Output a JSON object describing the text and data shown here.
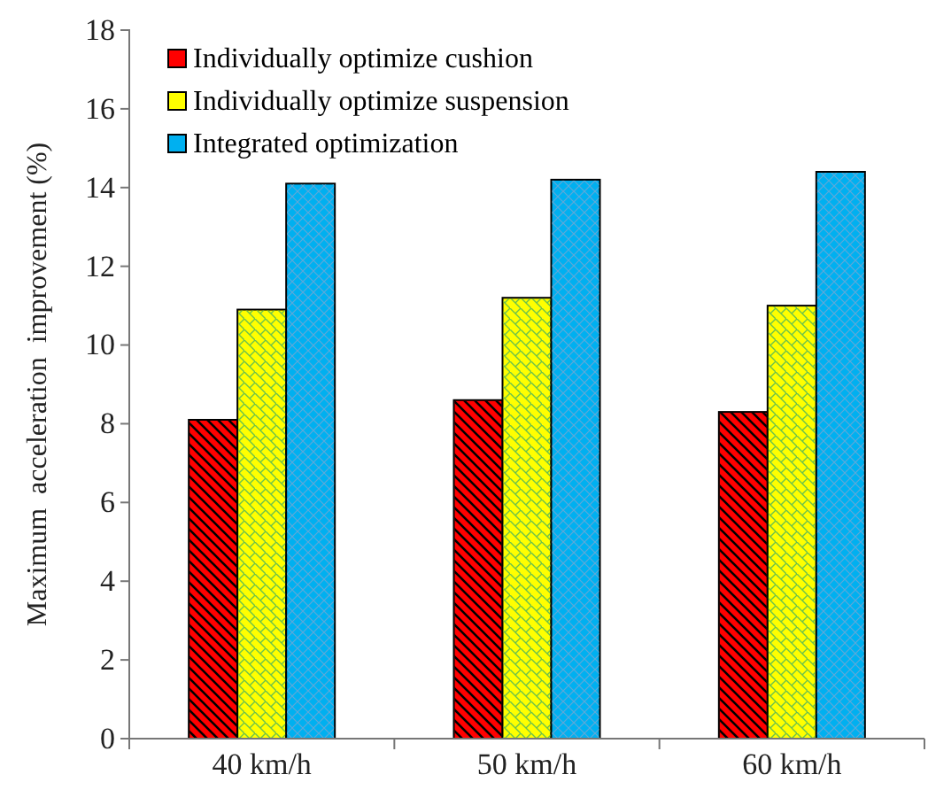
{
  "chart_data": {
    "type": "bar",
    "ylabel": "Maximum  acceleration  improvement (%)",
    "categories": [
      "40 km/h",
      "50 km/h",
      "60 km/h"
    ],
    "series": [
      {
        "name": "Individually optimize cushion",
        "color": "#ff0000",
        "values": [
          8.1,
          8.6,
          8.3
        ]
      },
      {
        "name": "Individually optimize suspension",
        "color": "#ffff00",
        "values": [
          10.9,
          11.2,
          11.0
        ]
      },
      {
        "name": "Integrated optimization",
        "color": "#00b0f0",
        "values": [
          14.1,
          14.2,
          14.4
        ]
      }
    ],
    "ylim": [
      0,
      18
    ],
    "yticks": [
      0,
      2,
      4,
      6,
      8,
      10,
      12,
      14,
      16,
      18
    ],
    "grid": false,
    "legend": "top left"
  }
}
